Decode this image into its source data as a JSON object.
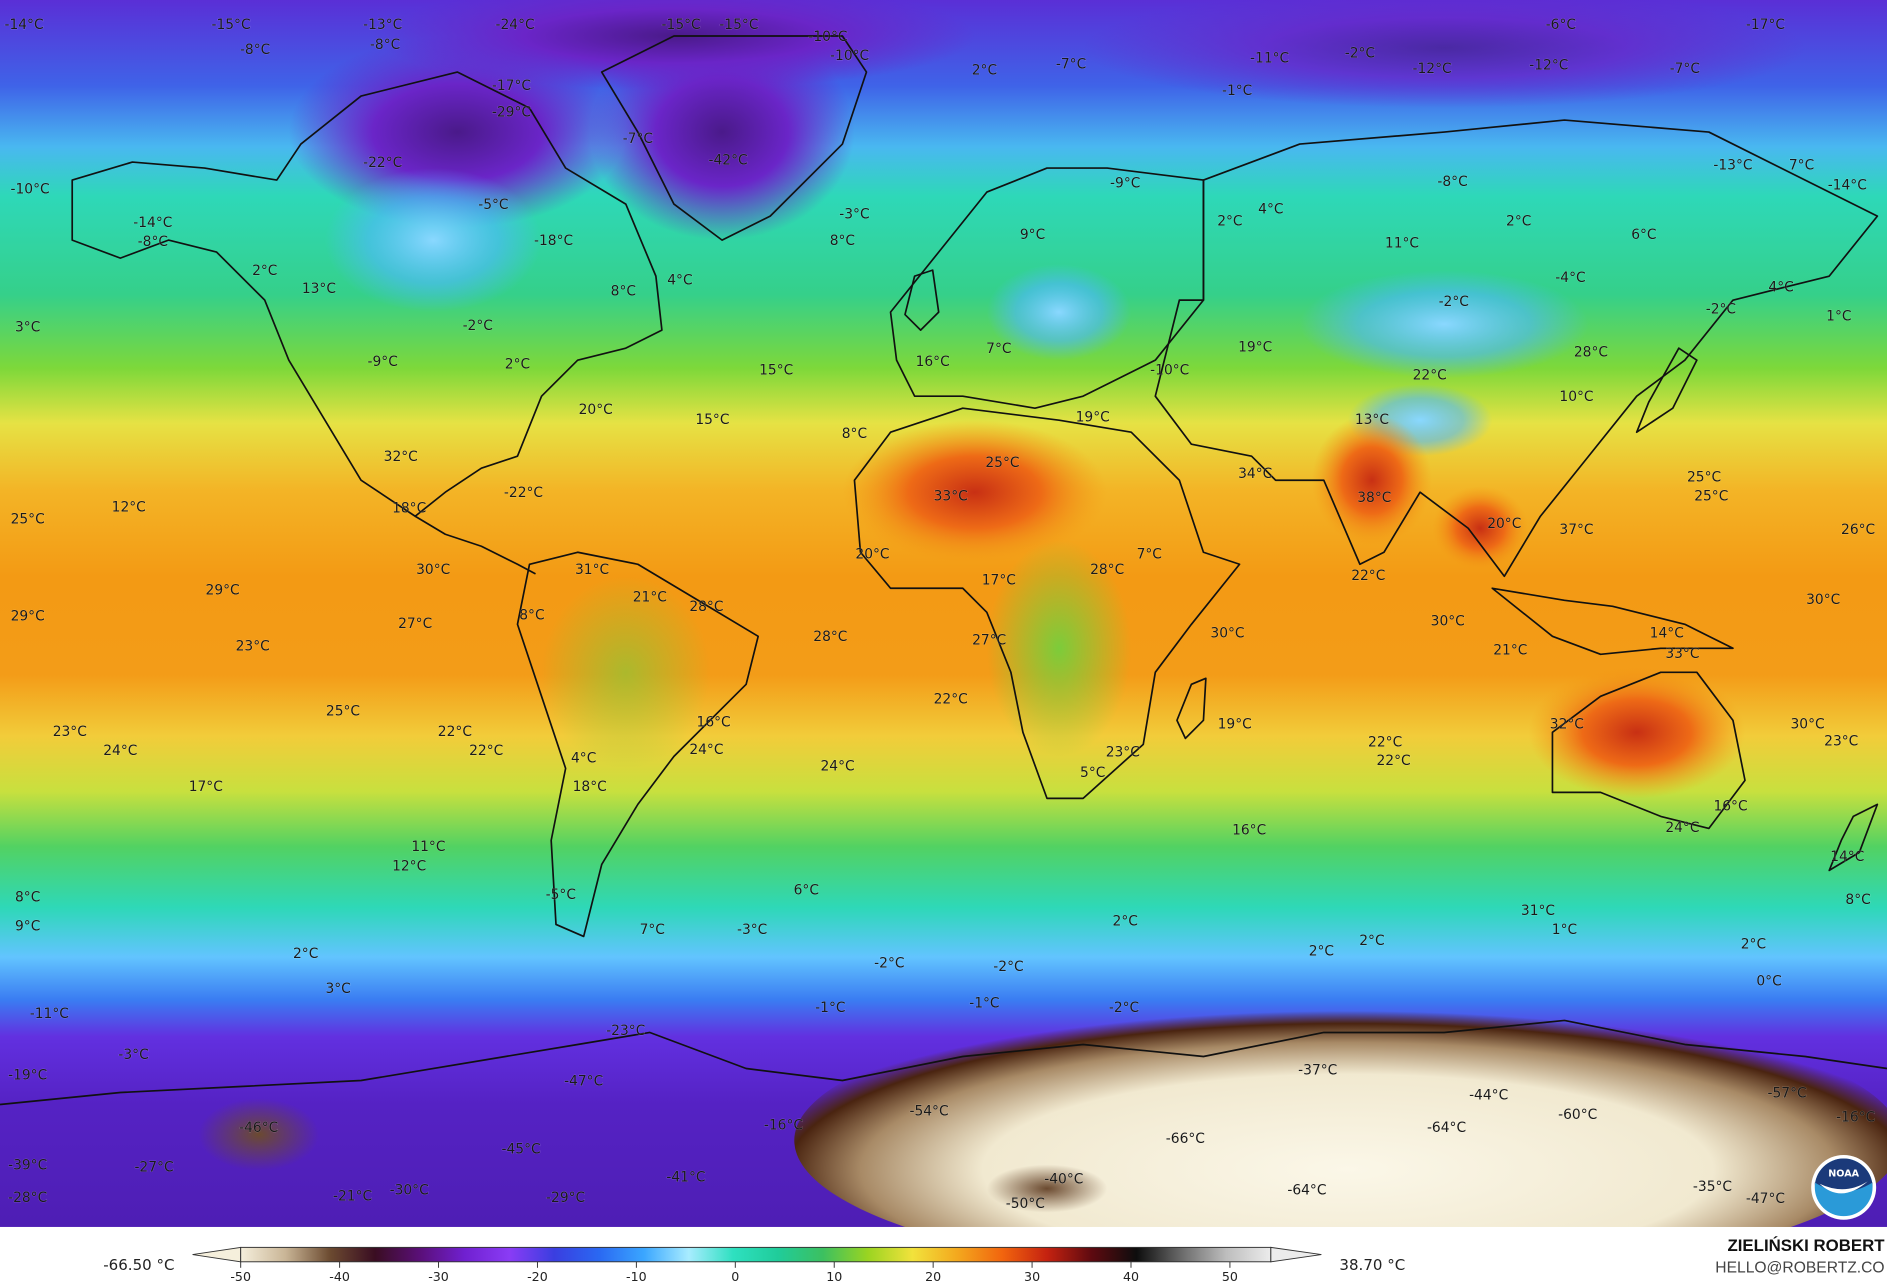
{
  "map": {
    "variable_unit": "°C",
    "temperature_labels": [
      "-14°C",
      "-15°C",
      "-13°C",
      "-24°C",
      "-15°C",
      "-15°C",
      "-10°C",
      "-10°C",
      "-6°C",
      "-17°C",
      "-8°C",
      "-8°C",
      "-11°C",
      "-2°C",
      "-12°C",
      "-12°C",
      "-7°C",
      "2°C",
      "-7°C",
      "-1°C",
      "-17°C",
      "-29°C",
      "-7°C",
      "-42°C",
      "-22°C",
      "-13°C",
      "7°C",
      "-10°C",
      "-9°C",
      "-8°C",
      "-14°C",
      "-5°C",
      "-3°C",
      "2°C",
      "4°C",
      "2°C",
      "6°C",
      "-14°C",
      "-8°C",
      "-18°C",
      "9°C",
      "8°C",
      "11°C",
      "2°C",
      "13°C",
      "8°C",
      "4°C",
      "-4°C",
      "4°C",
      "3°C",
      "-2°C",
      "-2°C",
      "-2°C",
      "1°C",
      "-9°C",
      "2°C",
      "15°C",
      "16°C",
      "7°C",
      "19°C",
      "28°C",
      "-10°C",
      "22°C",
      "10°C",
      "20°C",
      "15°C",
      "8°C",
      "19°C",
      "13°C",
      "32°C",
      "25°C",
      "34°C",
      "38°C",
      "-22°C",
      "33°C",
      "12°C",
      "18°C",
      "25°C",
      "25°C",
      "25°C",
      "20°C",
      "37°C",
      "26°C",
      "30°C",
      "31°C",
      "20°C",
      "7°C",
      "28°C",
      "22°C",
      "29°C",
      "21°C",
      "28°C",
      "17°C",
      "30°C",
      "29°C",
      "27°C",
      "8°C",
      "30°C",
      "30°C",
      "14°C",
      "23°C",
      "28°C",
      "27°C",
      "21°C",
      "33°C",
      "22°C",
      "25°C",
      "16°C",
      "19°C",
      "32°C",
      "30°C",
      "23°C",
      "24°C",
      "22°C",
      "22°C",
      "24°C",
      "22°C",
      "22°C",
      "23°C",
      "23°C",
      "4°C",
      "24°C",
      "5°C",
      "17°C",
      "18°C",
      "16°C",
      "24°C",
      "16°C",
      "11°C",
      "12°C",
      "14°C",
      "6°C",
      "-5°C",
      "8°C",
      "8°C",
      "7°C",
      "-3°C",
      "9°C",
      "2°C",
      "31°C",
      "1°C",
      "2°C",
      "2°C",
      "2°C",
      "2°C",
      "-2°C",
      "-2°C",
      "3°C",
      "0°C",
      "-1°C",
      "-1°C",
      "-2°C",
      "-11°C",
      "-23°C",
      "-3°C",
      "-37°C",
      "-19°C",
      "-47°C",
      "-57°C",
      "-44°C",
      "-54°C",
      "-60°C",
      "-16°C",
      "-46°C",
      "-16°C",
      "-64°C",
      "-66°C",
      "-45°C",
      "-27°C",
      "-39°C",
      "-41°C",
      "-40°C",
      "-21°C",
      "-30°C",
      "-29°C",
      "-28°C",
      "-50°C",
      "-64°C",
      "-35°C",
      "-47°C"
    ],
    "logo_text": "NOAA"
  },
  "legend": {
    "min_label": "-66.50 °C",
    "max_label": "38.70 °C",
    "ticks": [
      "-50",
      "-40",
      "-30",
      "-20",
      "-10",
      "0",
      "10",
      "20",
      "30",
      "40",
      "50"
    ],
    "colors": [
      "#f5efdc",
      "#c9b596",
      "#6b4a30",
      "#3a0d22",
      "#5a0f78",
      "#7020d0",
      "#8a3cf5",
      "#3a3ee0",
      "#2a68f2",
      "#3aa6ff",
      "#a8ecff",
      "#2ee0c0",
      "#20cc9a",
      "#3cc060",
      "#9ad421",
      "#f2e23c",
      "#f3a81e",
      "#f2650e",
      "#c52210",
      "#5e0a10",
      "#0d0d0d",
      "#6a6a6a",
      "#bdbdbd",
      "#ececec"
    ]
  },
  "credit": {
    "author": "ZIELIŃSKI ROBERT",
    "email": "HELLO@ROBERTZ.CO"
  }
}
